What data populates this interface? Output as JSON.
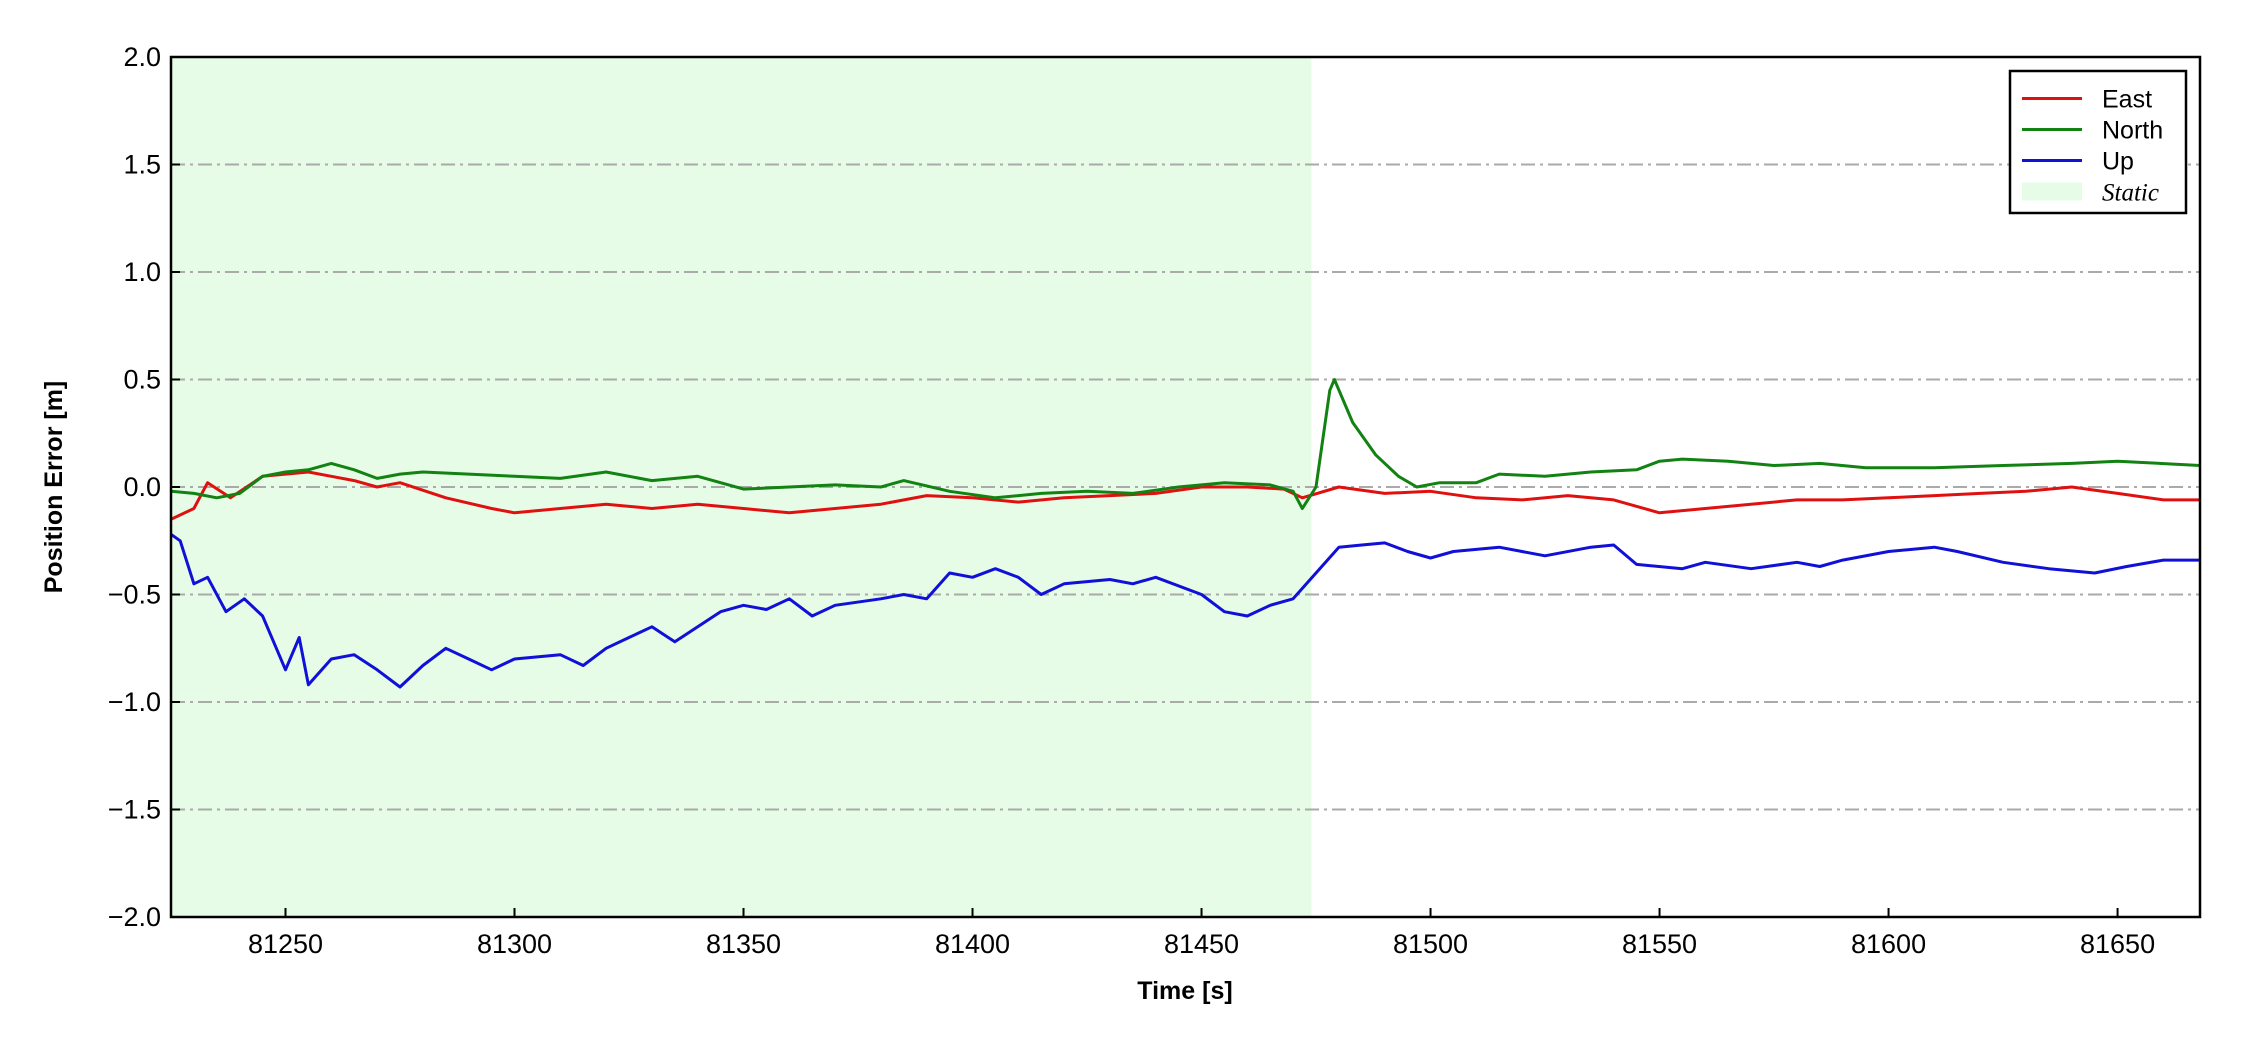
{
  "chart_data": {
    "type": "line",
    "xlabel": "Time [s]",
    "ylabel": "Position Error [m]",
    "xlim": [
      81225,
      81668
    ],
    "ylim": [
      -2,
      2
    ],
    "xticks": [
      81250,
      81300,
      81350,
      81400,
      81450,
      81500,
      81550,
      81600,
      81650
    ],
    "yticks": [
      {
        "value": -2,
        "label": "−2.0"
      },
      {
        "value": -1.5,
        "label": "−1.5"
      },
      {
        "value": -1,
        "label": "−1.0"
      },
      {
        "value": -0.5,
        "label": "−0.5"
      },
      {
        "value": 0,
        "label": "0.0"
      },
      {
        "value": 0.5,
        "label": "0.5"
      },
      {
        "value": 1,
        "label": "1.0"
      },
      {
        "value": 1.5,
        "label": "1.5"
      },
      {
        "value": 2,
        "label": "2.0"
      }
    ],
    "grid": true,
    "legend_position": "upper-right",
    "shaded_regions": [
      {
        "name": "Static",
        "x": [
          81225,
          81474
        ],
        "color": "#e6fce6"
      }
    ],
    "series": [
      {
        "name": "East",
        "color": "#e01010",
        "x": [
          81225,
          81230,
          81233,
          81238,
          81245,
          81255,
          81260,
          81265,
          81270,
          81275,
          81285,
          81295,
          81300,
          81310,
          81320,
          81330,
          81340,
          81350,
          81360,
          81370,
          81380,
          81390,
          81400,
          81410,
          81420,
          81430,
          81440,
          81450,
          81460,
          81468,
          81472,
          81480,
          81490,
          81500,
          81510,
          81520,
          81530,
          81540,
          81550,
          81560,
          81570,
          81580,
          81590,
          81600,
          81610,
          81620,
          81630,
          81640,
          81650,
          81660,
          81668
        ],
        "values": [
          -0.15,
          -0.1,
          0.02,
          -0.05,
          0.05,
          0.07,
          0.05,
          0.03,
          0.0,
          0.02,
          -0.05,
          -0.1,
          -0.12,
          -0.1,
          -0.08,
          -0.1,
          -0.08,
          -0.1,
          -0.12,
          -0.1,
          -0.08,
          -0.04,
          -0.05,
          -0.07,
          -0.05,
          -0.04,
          -0.03,
          0.0,
          0.0,
          -0.01,
          -0.05,
          0.0,
          -0.03,
          -0.02,
          -0.05,
          -0.06,
          -0.04,
          -0.06,
          -0.12,
          -0.1,
          -0.08,
          -0.06,
          -0.06,
          -0.05,
          -0.04,
          -0.03,
          -0.02,
          0.0,
          -0.03,
          -0.06,
          -0.06
        ]
      },
      {
        "name": "North",
        "color": "#128212",
        "x": [
          81225,
          81230,
          81235,
          81240,
          81245,
          81250,
          81255,
          81260,
          81265,
          81270,
          81275,
          81280,
          81290,
          81300,
          81310,
          81320,
          81330,
          81340,
          81350,
          81360,
          81370,
          81380,
          81385,
          81395,
          81405,
          81415,
          81425,
          81435,
          81445,
          81455,
          81465,
          81470,
          81472,
          81475,
          81478,
          81479,
          81483,
          81488,
          81493,
          81497,
          81502,
          81510,
          81515,
          81525,
          81535,
          81545,
          81550,
          81555,
          81565,
          81575,
          81585,
          81595,
          81610,
          81625,
          81640,
          81650,
          81668
        ],
        "values": [
          -0.02,
          -0.03,
          -0.05,
          -0.03,
          0.05,
          0.07,
          0.08,
          0.11,
          0.08,
          0.04,
          0.06,
          0.07,
          0.06,
          0.05,
          0.04,
          0.07,
          0.03,
          0.05,
          -0.01,
          0.0,
          0.01,
          0.0,
          0.03,
          -0.02,
          -0.05,
          -0.03,
          -0.02,
          -0.03,
          0.0,
          0.02,
          0.01,
          -0.02,
          -0.1,
          0.0,
          0.45,
          0.5,
          0.3,
          0.15,
          0.05,
          0.0,
          0.02,
          0.02,
          0.06,
          0.05,
          0.07,
          0.08,
          0.12,
          0.13,
          0.12,
          0.1,
          0.11,
          0.09,
          0.09,
          0.1,
          0.11,
          0.12,
          0.1
        ]
      },
      {
        "name": "Up",
        "color": "#1010d8",
        "x": [
          81225,
          81227,
          81230,
          81233,
          81237,
          81241,
          81245,
          81250,
          81253,
          81255,
          81260,
          81265,
          81270,
          81275,
          81280,
          81285,
          81290,
          81295,
          81300,
          81310,
          81315,
          81320,
          81325,
          81330,
          81335,
          81340,
          81345,
          81350,
          81355,
          81360,
          81365,
          81370,
          81380,
          81385,
          81390,
          81395,
          81400,
          81405,
          81410,
          81415,
          81420,
          81430,
          81435,
          81440,
          81450,
          81455,
          81460,
          81465,
          81470,
          81475,
          81480,
          81485,
          81490,
          81495,
          81500,
          81505,
          81515,
          81525,
          81535,
          81540,
          81545,
          81555,
          81560,
          81570,
          81580,
          81585,
          81590,
          81600,
          81610,
          81615,
          81625,
          81635,
          81645,
          81652,
          81660,
          81668
        ],
        "values": [
          -0.22,
          -0.25,
          -0.45,
          -0.42,
          -0.58,
          -0.52,
          -0.6,
          -0.85,
          -0.7,
          -0.92,
          -0.8,
          -0.78,
          -0.85,
          -0.93,
          -0.83,
          -0.75,
          -0.8,
          -0.85,
          -0.8,
          -0.78,
          -0.83,
          -0.75,
          -0.7,
          -0.65,
          -0.72,
          -0.65,
          -0.58,
          -0.55,
          -0.57,
          -0.52,
          -0.6,
          -0.55,
          -0.52,
          -0.5,
          -0.52,
          -0.4,
          -0.42,
          -0.38,
          -0.42,
          -0.5,
          -0.45,
          -0.43,
          -0.45,
          -0.42,
          -0.5,
          -0.58,
          -0.6,
          -0.55,
          -0.52,
          -0.4,
          -0.28,
          -0.27,
          -0.26,
          -0.3,
          -0.33,
          -0.3,
          -0.28,
          -0.32,
          -0.28,
          -0.27,
          -0.36,
          -0.38,
          -0.35,
          -0.38,
          -0.35,
          -0.37,
          -0.34,
          -0.3,
          -0.28,
          -0.3,
          -0.35,
          -0.38,
          -0.4,
          -0.37,
          -0.34,
          -0.34
        ]
      }
    ]
  }
}
